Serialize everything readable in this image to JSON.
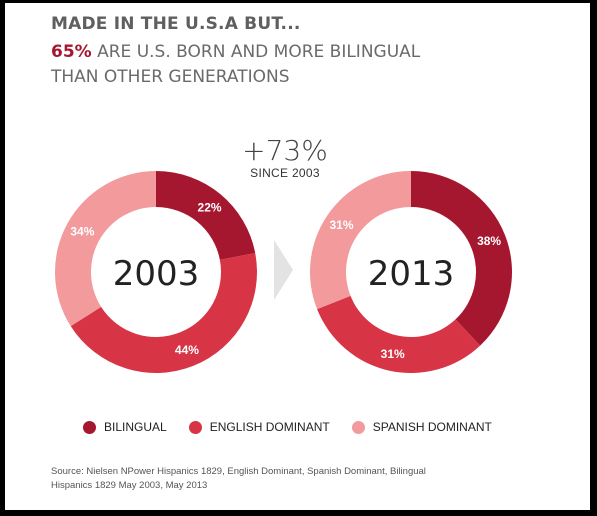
{
  "header": {
    "line1": "MADE IN THE U.S.A BUT...",
    "line2_accent": "65%",
    "line2_rest": "ARE U.S. BORN AND MORE BILINGUAL THAN OTHER GENERATIONS"
  },
  "growth": {
    "value": "+73%",
    "label": "SINCE 2003"
  },
  "colors": {
    "bilingual": "#a5172f",
    "english": "#d73445",
    "spanish": "#f29a9c"
  },
  "chart_data": [
    {
      "type": "pie",
      "title": "2003",
      "categories": [
        "BILINGUAL",
        "ENGLISH DOMINANT",
        "SPANISH DOMINANT"
      ],
      "values": [
        22,
        44,
        34
      ],
      "labels": [
        "22%",
        "44%",
        "34%"
      ]
    },
    {
      "type": "pie",
      "title": "2013",
      "categories": [
        "BILINGUAL",
        "ENGLISH DOMINANT",
        "SPANISH DOMINANT"
      ],
      "values": [
        38,
        31,
        31
      ],
      "labels": [
        "38%",
        "31%",
        "31%"
      ]
    }
  ],
  "legend": [
    "BILINGUAL",
    "ENGLISH DOMINANT",
    "SPANISH DOMINANT"
  ],
  "source": "Source: Nielsen NPower Hispanics 1829, English Dominant, Spanish Dominant, Bilingual Hispanics 1829 May 2003, May 2013"
}
